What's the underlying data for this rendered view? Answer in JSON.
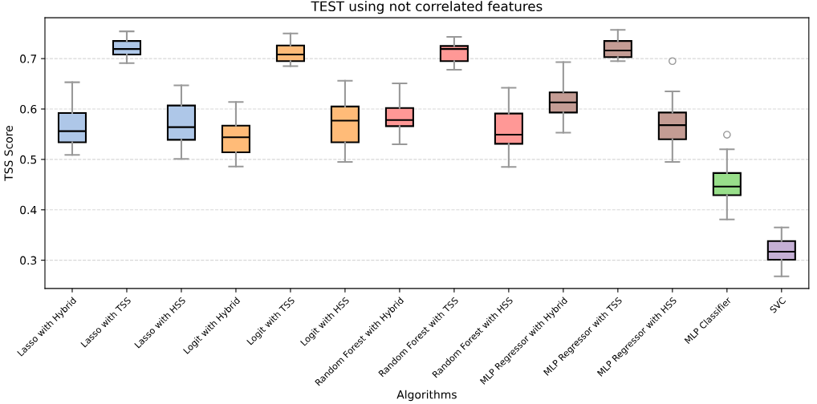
{
  "chart_data": {
    "type": "box",
    "title": "TEST using not correlated features",
    "xlabel": "Algorithms",
    "ylabel": "TSS Score",
    "categories": [
      "Lasso with Hybrid",
      "Lasso with TSS",
      "Lasso with HSS",
      "Logit with Hybrid",
      "Logit with TSS",
      "Logit with HSS",
      "Random Forest with Hybrid",
      "Random Forest with TSS",
      "Random Forest with HSS",
      "MLP Regressor with Hybrid",
      "MLP Regressor with TSS",
      "MLP Regressor with HSS",
      "MLP Classifier",
      "SVC"
    ],
    "colors": [
      "#aec7e8",
      "#aec7e8",
      "#aec7e8",
      "#ffbb78",
      "#ffbb78",
      "#ffbb78",
      "#ff9896",
      "#ff9896",
      "#ff9896",
      "#c49c94",
      "#c49c94",
      "#c49c94",
      "#98df8a",
      "#c5b0d5"
    ],
    "boxes": [
      {
        "low": 0.509,
        "q1": 0.534,
        "median": 0.556,
        "q3": 0.592,
        "high": 0.653
      },
      {
        "low": 0.691,
        "q1": 0.708,
        "median": 0.719,
        "q3": 0.735,
        "high": 0.754
      },
      {
        "low": 0.501,
        "q1": 0.539,
        "median": 0.564,
        "q3": 0.607,
        "high": 0.647
      },
      {
        "low": 0.486,
        "q1": 0.514,
        "median": 0.544,
        "q3": 0.567,
        "high": 0.614
      },
      {
        "low": 0.685,
        "q1": 0.695,
        "median": 0.708,
        "q3": 0.726,
        "high": 0.75
      },
      {
        "low": 0.495,
        "q1": 0.534,
        "median": 0.577,
        "q3": 0.605,
        "high": 0.656
      },
      {
        "low": 0.53,
        "q1": 0.566,
        "median": 0.578,
        "q3": 0.602,
        "high": 0.651
      },
      {
        "low": 0.678,
        "q1": 0.695,
        "median": 0.719,
        "q3": 0.725,
        "high": 0.743
      },
      {
        "low": 0.485,
        "q1": 0.531,
        "median": 0.549,
        "q3": 0.591,
        "high": 0.642
      },
      {
        "low": 0.553,
        "q1": 0.593,
        "median": 0.613,
        "q3": 0.633,
        "high": 0.693
      },
      {
        "low": 0.695,
        "q1": 0.703,
        "median": 0.716,
        "q3": 0.735,
        "high": 0.757
      },
      {
        "low": 0.495,
        "q1": 0.54,
        "median": 0.568,
        "q3": 0.593,
        "high": 0.635,
        "outliers": [
          0.695
        ]
      },
      {
        "low": 0.381,
        "q1": 0.429,
        "median": 0.446,
        "q3": 0.473,
        "high": 0.52,
        "outliers": [
          0.549
        ]
      },
      {
        "low": 0.268,
        "q1": 0.301,
        "median": 0.317,
        "q3": 0.338,
        "high": 0.365
      }
    ],
    "ylim": [
      0.244,
      0.781
    ],
    "yticks": [
      0.3,
      0.4,
      0.5,
      0.6,
      0.7
    ],
    "grid": "y",
    "line_style": "dashed"
  }
}
